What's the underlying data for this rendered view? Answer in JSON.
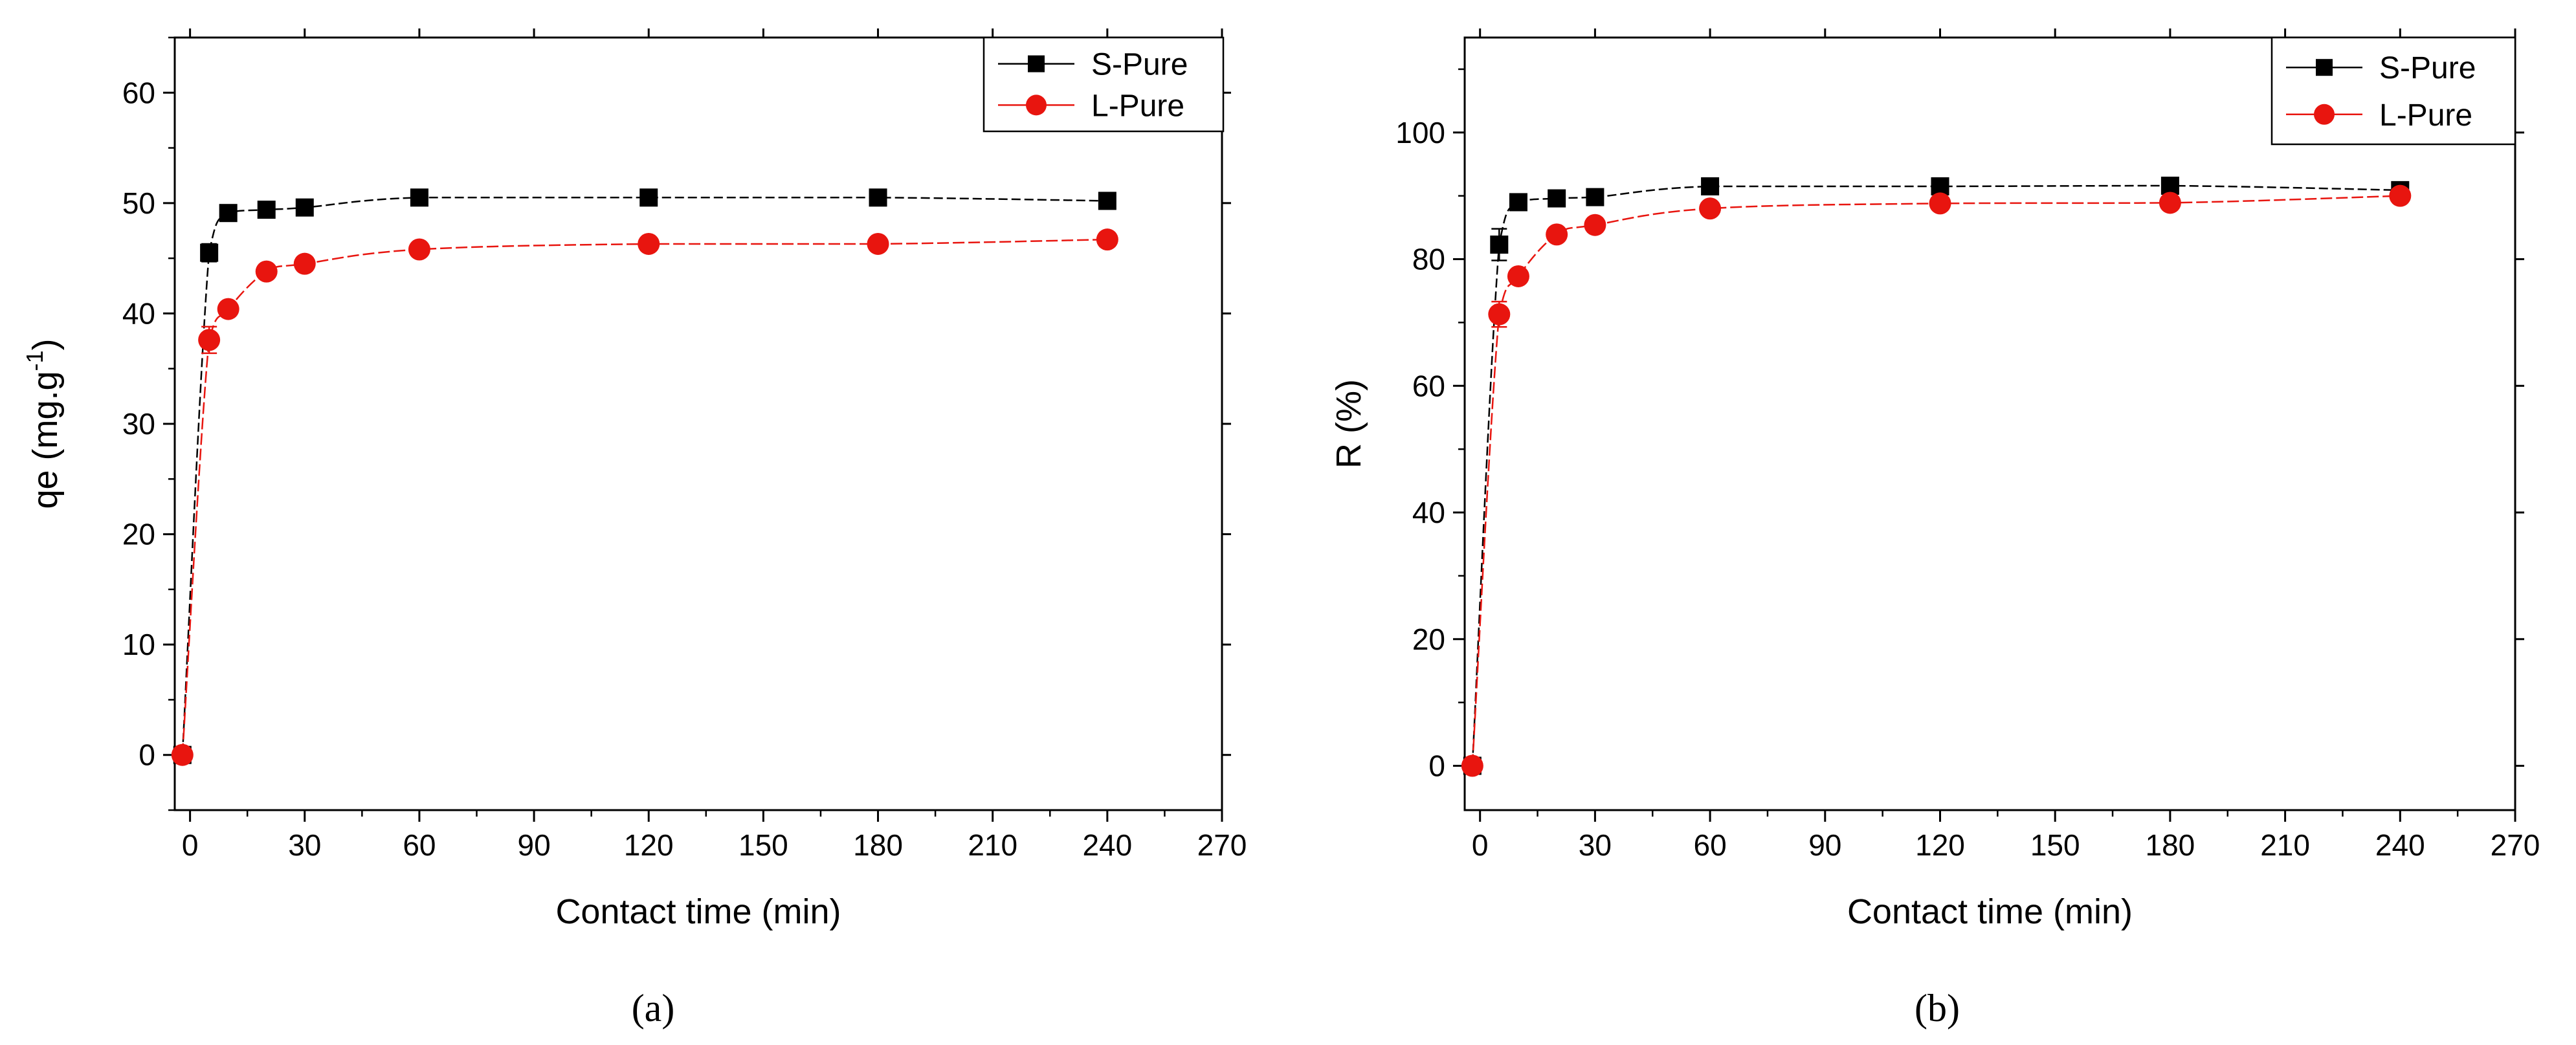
{
  "chart_data": [
    {
      "type": "line",
      "panel_label": "(a)",
      "title": "",
      "xlabel": "Contact time (min)",
      "ylabel": "qe (mg.g-1)",
      "ylabel_main": "qe (mg.g",
      "ylabel_sup": "-1",
      "ylabel_close": ")",
      "xlim": [
        -4,
        270
      ],
      "ylim": [
        -5,
        65
      ],
      "xticks": [
        0,
        30,
        60,
        90,
        120,
        150,
        180,
        210,
        240,
        270
      ],
      "yticks": [
        0,
        10,
        20,
        30,
        40,
        50,
        60
      ],
      "legend_position": "top-right",
      "series": [
        {
          "name": "S-Pure",
          "color": "#000000",
          "marker": "square",
          "x": [
            -2,
            5,
            10,
            20,
            30,
            60,
            120,
            180,
            240
          ],
          "y": [
            0,
            45.5,
            49.1,
            49.4,
            49.6,
            50.5,
            50.5,
            50.5,
            50.2
          ],
          "err": [
            0,
            0.8,
            0.5,
            0.4,
            0.4,
            0.3,
            0.3,
            0.3,
            0.3
          ]
        },
        {
          "name": "L-Pure",
          "color": "#e8150f",
          "marker": "circle",
          "x": [
            -2,
            5,
            10,
            20,
            30,
            60,
            120,
            180,
            240
          ],
          "y": [
            0,
            37.6,
            40.4,
            43.8,
            44.5,
            45.8,
            46.3,
            46.3,
            46.7
          ],
          "err": [
            0,
            1.2,
            0.5,
            0.5,
            0.4,
            0.3,
            0.3,
            0.3,
            0.3
          ]
        }
      ]
    },
    {
      "type": "line",
      "panel_label": "(b)",
      "title": "",
      "xlabel": "Contact time (min)",
      "ylabel": "R (%)",
      "xlim": [
        -4,
        270
      ],
      "ylim": [
        -7,
        115
      ],
      "xticks": [
        0,
        30,
        60,
        90,
        120,
        150,
        180,
        210,
        240,
        270
      ],
      "yticks": [
        0,
        20,
        40,
        60,
        80,
        100
      ],
      "legend_position": "top-right",
      "series": [
        {
          "name": "S-Pure",
          "color": "#000000",
          "marker": "square",
          "x": [
            -2,
            5,
            10,
            20,
            30,
            60,
            120,
            180,
            240
          ],
          "y": [
            0,
            82.3,
            89.0,
            89.6,
            89.8,
            91.5,
            91.5,
            91.6,
            90.9
          ],
          "err": [
            0,
            2.5,
            1.0,
            0.8,
            0.8,
            0.6,
            0.6,
            0.8,
            1.0
          ]
        },
        {
          "name": "L-Pure",
          "color": "#e8150f",
          "marker": "circle",
          "x": [
            -2,
            5,
            10,
            20,
            30,
            60,
            120,
            180,
            240
          ],
          "y": [
            0,
            71.3,
            77.3,
            83.9,
            85.4,
            88.0,
            88.8,
            88.9,
            90.0
          ],
          "err": [
            0,
            2.0,
            1.0,
            0.8,
            0.8,
            0.6,
            0.6,
            0.6,
            0.8
          ]
        }
      ]
    }
  ]
}
